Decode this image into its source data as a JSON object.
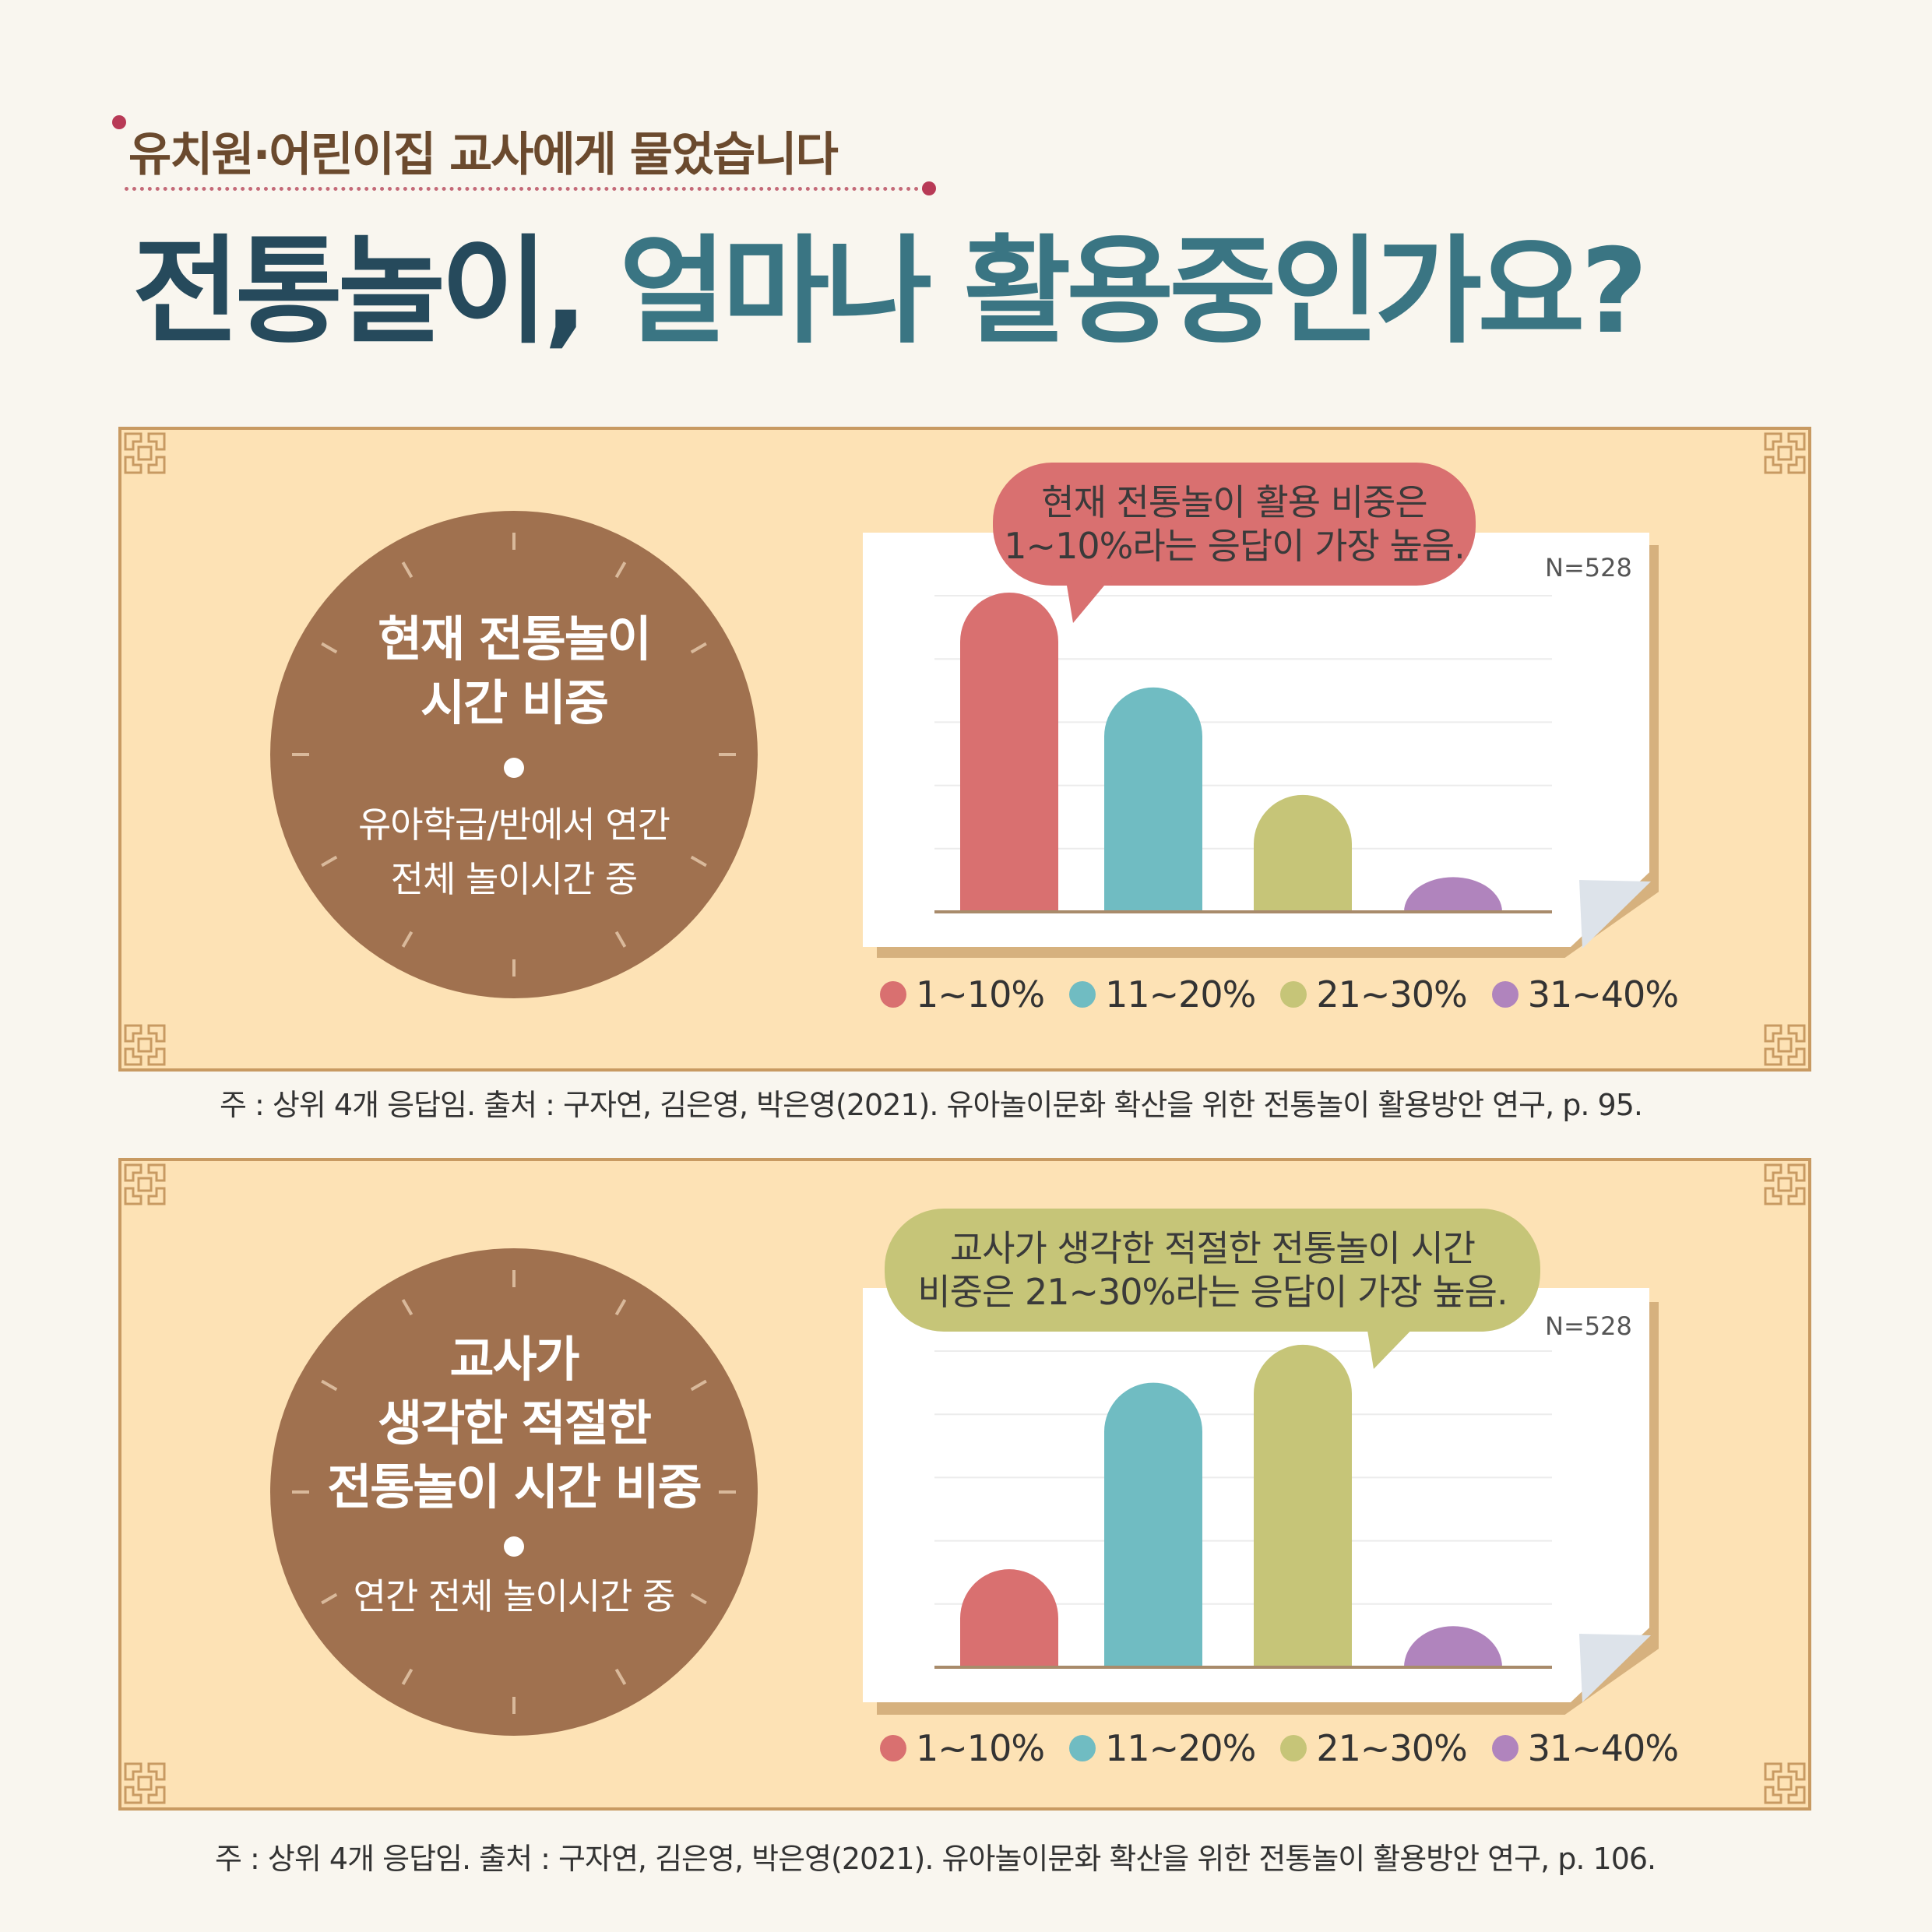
{
  "header": {
    "subtitle": "유치원·어린이집 교사에게 물었습니다",
    "title_part1": "전통놀이,",
    "title_part2": "얼마나 활용중인가요?"
  },
  "colors": {
    "bar1": "#d97070",
    "bar2": "#70bcc2",
    "bar3": "#c6c578",
    "bar4": "#b084bd"
  },
  "panels": [
    {
      "circle_title_lines": [
        "현재 전통놀이",
        "시간 비중"
      ],
      "circle_sub_lines": [
        "유아학급/반에서 연간",
        "전체 놀이시간 중"
      ],
      "bubble_lines": [
        "현재 전통놀이 활용 비중은",
        "1~10%라는 응답이 가장 높음."
      ],
      "bubble_color": "#d97070",
      "n_label": "N=528",
      "note": "주 : 상위 4개 응답임.      출처 : 구자연, 김은영, 박은영(2021). 유아놀이문화 확산을 위한 전통놀이 활용방안 연구, p. 95."
    },
    {
      "circle_title_lines": [
        "교사가",
        "생각한 적절한",
        "전통놀이 시간 비중"
      ],
      "circle_sub_lines": [
        "연간 전체 놀이시간 중"
      ],
      "bubble_lines": [
        "교사가 생각한 적절한 전통놀이 시간",
        "비중은 21~30%라는 응답이 가장 높음."
      ],
      "bubble_color": "#c6c578",
      "n_label": "N=528",
      "note": "주 : 상위 4개 응답임.      출처 : 구자연, 김은영, 박은영(2021). 유아놀이문화 확산을 위한 전통놀이 활용방안 연구, p. 106."
    }
  ],
  "chart_data": [
    {
      "type": "bar",
      "categories": [
        "1~10%",
        "11~20%",
        "21~30%",
        "31~40%"
      ],
      "values": [
        50.5,
        35.5,
        18.5,
        5.5
      ],
      "ylim": [
        0,
        50
      ],
      "grid": true,
      "legend": "bottom",
      "title": "",
      "xlabel": "",
      "ylabel": ""
    },
    {
      "type": "bar",
      "categories": [
        "1~10%",
        "11~20%",
        "21~30%",
        "31~40%"
      ],
      "values": [
        15.5,
        45,
        51,
        6.5
      ],
      "ylim": [
        0,
        50
      ],
      "grid": true,
      "legend": "bottom",
      "title": "",
      "xlabel": "",
      "ylabel": ""
    }
  ]
}
